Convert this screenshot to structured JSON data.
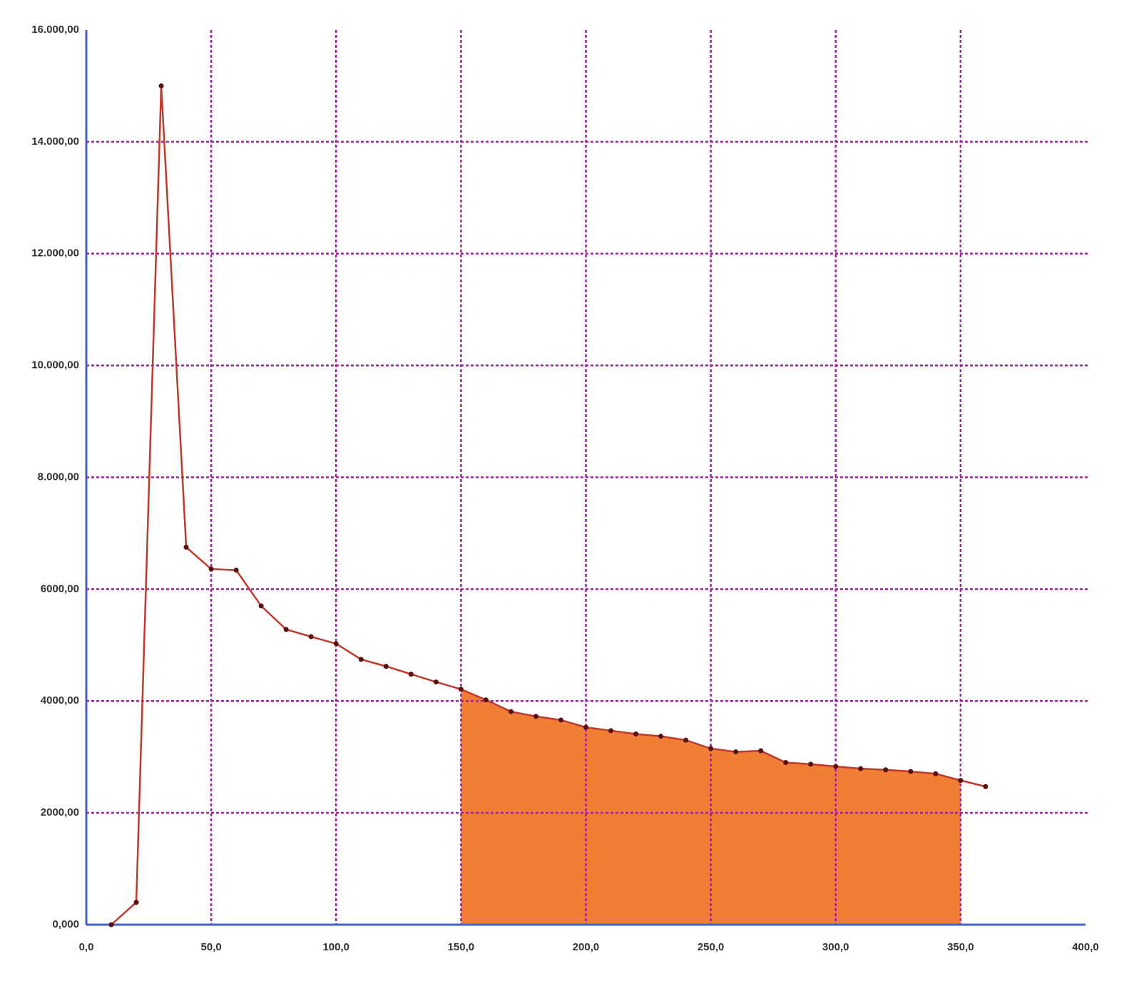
{
  "chart_data": {
    "type": "line",
    "x": [
      10,
      20,
      30,
      40,
      50,
      60,
      70,
      80,
      90,
      100,
      110,
      120,
      130,
      140,
      150,
      160,
      170,
      180,
      190,
      200,
      210,
      220,
      230,
      240,
      250,
      260,
      270,
      280,
      290,
      300,
      310,
      320,
      330,
      340,
      350,
      360
    ],
    "series": [
      {
        "color": "#c0392b",
        "values": [
          0,
          400,
          15000,
          6750,
          6360,
          6340,
          5700,
          5280,
          5150,
          5025,
          4745,
          4620,
          4480,
          4340,
          4210,
          4020,
          3810,
          3725,
          3660,
          3530,
          3470,
          3410,
          3370,
          3300,
          3150,
          3090,
          3110,
          2900,
          2870,
          2830,
          2790,
          2770,
          2740,
          2700,
          2580,
          2470
        ]
      }
    ],
    "shade_range": [
      150,
      350
    ],
    "shade_color": "#f07e35",
    "xlim": [
      0,
      400
    ],
    "xticks": [
      {
        "value": 0,
        "label": "0,0"
      },
      {
        "value": 50,
        "label": "50,0"
      },
      {
        "value": 100,
        "label": "100,0"
      },
      {
        "value": 150,
        "label": "150,0"
      },
      {
        "value": 200,
        "label": "200,0"
      },
      {
        "value": 250,
        "label": "250,0"
      },
      {
        "value": 300,
        "label": "300,0"
      },
      {
        "value": 350,
        "label": "350,0"
      },
      {
        "value": 400,
        "label": "400,0"
      }
    ],
    "ylim": [
      0,
      16000
    ],
    "yticks": [
      {
        "value": 0,
        "label": "0,000"
      },
      {
        "value": 2000,
        "label": "2000,00"
      },
      {
        "value": 4000,
        "label": "4000,00"
      },
      {
        "value": 6000,
        "label": "6000,00"
      },
      {
        "value": 8000,
        "label": "8.000,00"
      },
      {
        "value": 10000,
        "label": "10.000,00"
      },
      {
        "value": 12000,
        "label": "12.000,00"
      },
      {
        "value": 14000,
        "label": "14.000,00"
      },
      {
        "value": 16000,
        "label": "16.000,00"
      }
    ],
    "grid": true,
    "grid_color": "#a020a0",
    "axis_color": "#4a5fc1"
  }
}
